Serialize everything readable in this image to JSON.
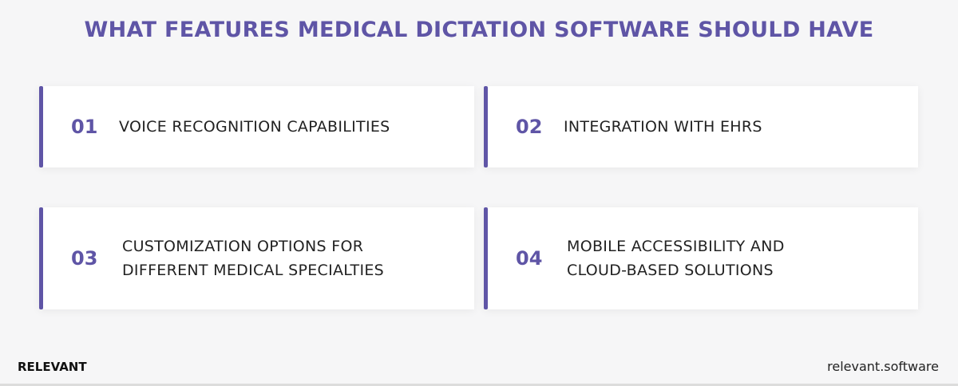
{
  "title": "WHAT FEATURES MEDICAL DICTATION SOFTWARE SHOULD HAVE",
  "accent_color": "#5f55a6",
  "features": [
    {
      "number": "01",
      "text": "VOICE RECOGNITION CAPABILITIES"
    },
    {
      "number": "02",
      "text": "INTEGRATION WITH EHRS"
    },
    {
      "number": "03",
      "line1": "CUSTOMIZATION OPTIONS FOR",
      "line2": "DIFFERENT MEDICAL SPECIALTIES"
    },
    {
      "number": "04",
      "line1": "MOBILE ACCESSIBILITY AND",
      "line2": "CLOUD-BASED SOLUTIONS"
    }
  ],
  "footer": {
    "brand": "RELEVANT",
    "website": "relevant.software"
  }
}
